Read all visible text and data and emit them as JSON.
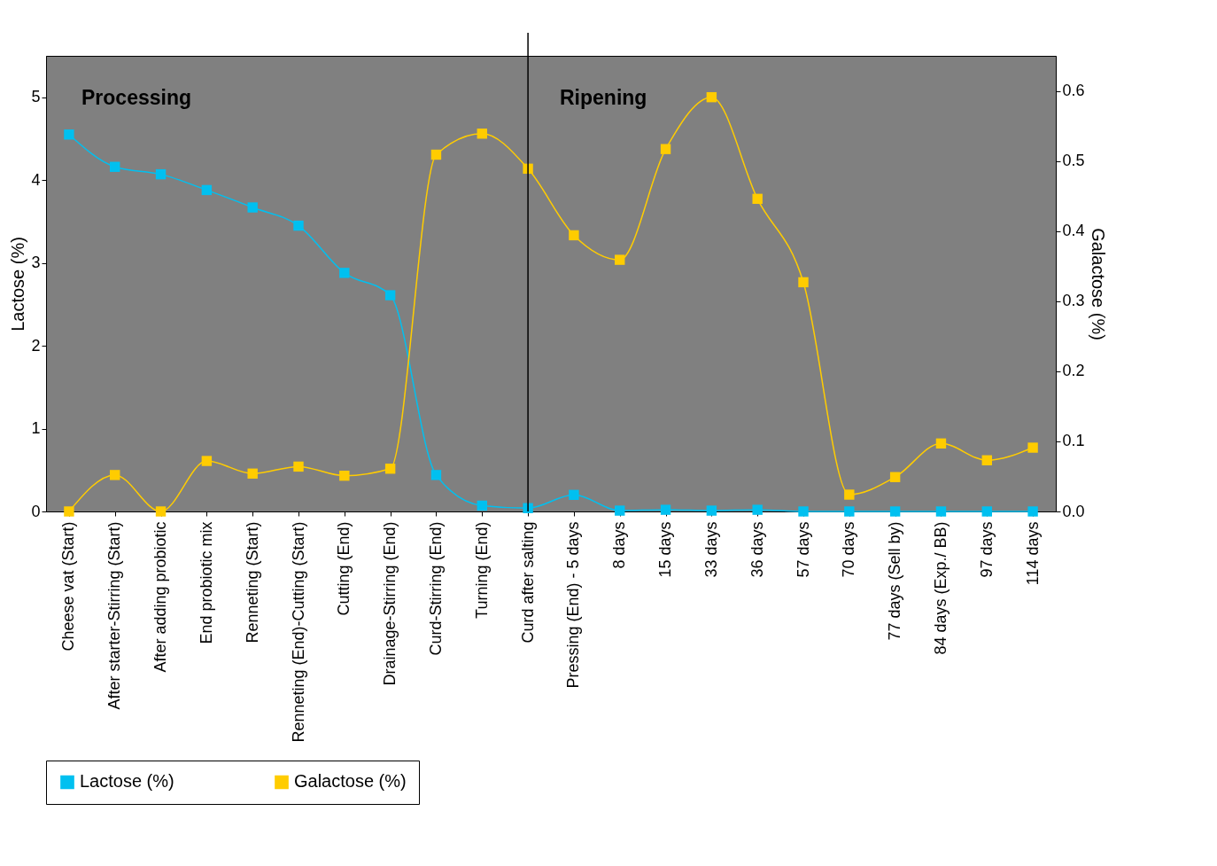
{
  "chart_data": {
    "type": "line",
    "xlabel": null,
    "ylabel": "Lactose (%)",
    "y2label": "Galactose (%)",
    "categories": [
      "Cheese vat (Start)",
      "After starter-Stirring (Start)",
      "After adding probiotic",
      "End probiotic mix",
      "Renneting (Start)",
      "Renneting (End)-Cutting (Start)",
      "Cutting (End)",
      "Drainage-Stirring (End)",
      "Curd-Stirring (End)",
      "Turning (End)",
      "Curd after salting",
      "Pressing (End) - 5 days",
      "8 days",
      "15 days",
      "33 days",
      "36 days",
      "57 days",
      "70 days",
      "77 days (Sell by)",
      "84 days (Exp./ BB)",
      "97 days",
      "114 days"
    ],
    "series": [
      {
        "name": "Lactose (%)",
        "color": "#00c0f0",
        "axis": "y",
        "values": [
          4.55,
          4.16,
          4.07,
          3.88,
          3.67,
          3.45,
          2.88,
          2.61,
          0.44,
          0.07,
          0.04,
          0.2,
          0.01,
          0.02,
          0.01,
          0.02,
          0,
          0,
          0,
          0,
          0,
          0
        ]
      },
      {
        "name": "Galactose (%)",
        "color": "#ffcc00",
        "axis": "y2",
        "values": [
          0,
          0.052,
          0,
          0.072,
          0.054,
          0.064,
          0.051,
          0.061,
          0.509,
          0.539,
          0.489,
          0.394,
          0.359,
          0.517,
          0.591,
          0.446,
          0.327,
          0.024,
          0.049,
          0.097,
          0.073,
          0.091
        ]
      }
    ],
    "ylim": [
      0,
      5.5
    ],
    "yticks": [
      0,
      1,
      2,
      3,
      4,
      5
    ],
    "y2lim": [
      0,
      0.65
    ],
    "y2ticks": [
      {
        "value": 0,
        "label": "0.0"
      },
      {
        "value": 0.1,
        "label": "0.1"
      },
      {
        "value": 0.2,
        "label": "0.2"
      },
      {
        "value": 0.3,
        "label": "0.3"
      },
      {
        "value": 0.4,
        "label": "0.4"
      },
      {
        "value": 0.5,
        "label": "0.5"
      },
      {
        "value": 0.6,
        "label": "0.6"
      }
    ],
    "ref_lines": [
      {
        "axis": "x",
        "value": "Curd after salting",
        "color": "#000000"
      }
    ],
    "annotations": [
      "Processing",
      "Ripening"
    ],
    "grid": false,
    "legend": "bottom",
    "marker": "square",
    "line_style": "solid"
  }
}
